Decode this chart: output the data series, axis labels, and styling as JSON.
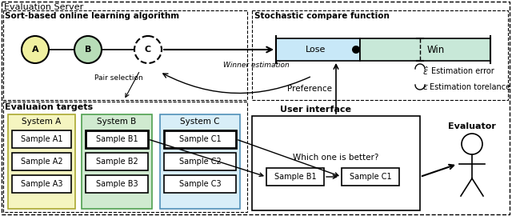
{
  "fig_width": 6.4,
  "fig_height": 2.7,
  "dpi": 100,
  "bg_color": "#ffffff",
  "node_A_color": "#f0f0a0",
  "node_B_color": "#b8ddb8",
  "node_C_color": "#ffffff",
  "lose_color": "#c8e8f8",
  "win_color": "#c8e8d8",
  "system_A_color": "#f5f5c0",
  "system_B_color": "#d0ead0",
  "system_C_color": "#d8eef8",
  "title_eval_server": "Evaluation Server",
  "title_sort_alg": "Sort-based online learning algorithm",
  "title_stoch_compare": "Stochastic compare function",
  "title_eval_targets": "Evaluaion targets",
  "title_user_interface": "User interface",
  "title_evaluator": "Evaluator",
  "label_pair_selection": "Pair selection",
  "label_winner_estimation": "Winner estimation",
  "label_preference": "Preference",
  "label_lose": "Lose",
  "label_win": "Win",
  "label_est_error": "Estimation error",
  "label_est_tolerance": "Estimation torelance",
  "label_which": "Which one is better?",
  "systems": [
    "System A",
    "System B",
    "System C"
  ],
  "samples_A": [
    "Sample A1",
    "Sample A2",
    "Sample A3"
  ],
  "samples_B": [
    "Sample B1",
    "Sample B2",
    "Sample B3"
  ],
  "samples_C": [
    "Sample C1",
    "Sample C2",
    "Sample C3"
  ],
  "ui_samples": [
    "Sample B1",
    "Sample C1"
  ]
}
